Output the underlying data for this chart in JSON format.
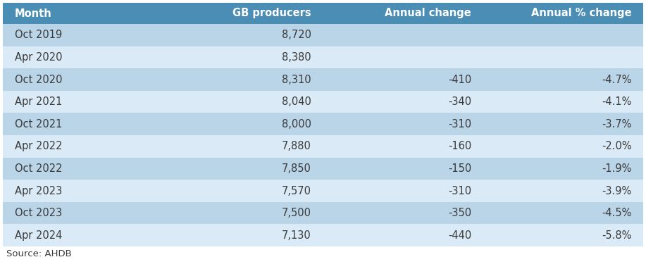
{
  "headers": [
    "Month",
    "GB producers",
    "Annual change",
    "Annual % change"
  ],
  "rows": [
    [
      "Oct 2019",
      "8,720",
      "",
      ""
    ],
    [
      "Apr 2020",
      "8,380",
      "",
      ""
    ],
    [
      "Oct 2020",
      "8,310",
      "-410",
      "-4.7%"
    ],
    [
      "Apr 2021",
      "8,040",
      "-340",
      "-4.1%"
    ],
    [
      "Oct 2021",
      "8,000",
      "-310",
      "-3.7%"
    ],
    [
      "Apr 2022",
      "7,880",
      "-160",
      "-2.0%"
    ],
    [
      "Oct 2022",
      "7,850",
      "-150",
      "-1.9%"
    ],
    [
      "Apr 2023",
      "7,570",
      "-310",
      "-3.9%"
    ],
    [
      "Oct 2023",
      "7,500",
      "-350",
      "-4.5%"
    ],
    [
      "Apr 2024",
      "7,130",
      "-440",
      "-5.8%"
    ]
  ],
  "source": "Source: AHDB",
  "header_bg": "#4a8db5",
  "row_bg_dark": "#bad4e8",
  "row_bg_light": "#daeaf6",
  "header_text_color": "#ffffff",
  "row_text_color": "#3a3a3a",
  "col_alignments": [
    "left",
    "right",
    "right",
    "right"
  ],
  "header_fontsize": 10.5,
  "row_fontsize": 10.5,
  "source_fontsize": 9.5,
  "fig_width": 9.17,
  "fig_height": 3.82,
  "dpi": 100
}
